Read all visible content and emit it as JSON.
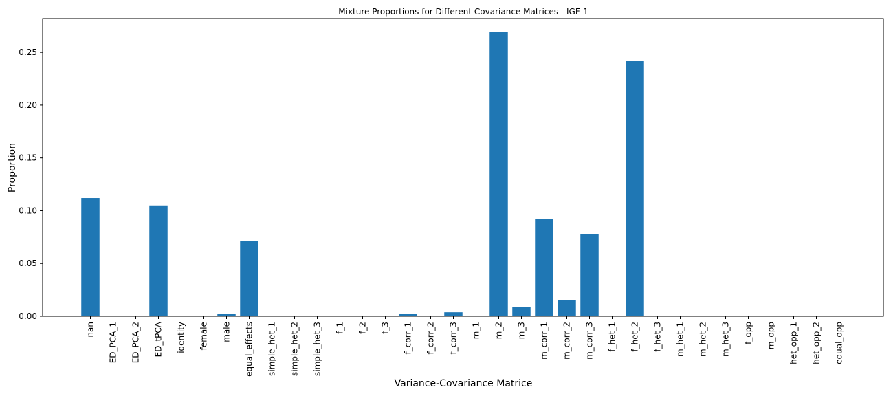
{
  "chart_data": {
    "type": "bar",
    "title": "Mixture Proportions for Different Covariance Matrices - IGF-1",
    "xlabel": "Variance-Covariance Matrice",
    "ylabel": "Proportion",
    "ylim": [
      0,
      0.282
    ],
    "yticks": [
      "0.00",
      "0.05",
      "0.10",
      "0.15",
      "0.20",
      "0.25"
    ],
    "grid": false,
    "color": "#1f77b4",
    "categories": [
      "nan",
      "ED_PCA_1",
      "ED_PCA_2",
      "ED_tPCA",
      "identity",
      "female",
      "male",
      "equal_effects",
      "simple_het_1",
      "simple_het_2",
      "simple_het_3",
      "f_1",
      "f_2",
      "f_3",
      "f_corr_1",
      "f_corr_2",
      "f_corr_3",
      "m_1",
      "m_2",
      "m_3",
      "m_corr_1",
      "m_corr_2",
      "m_corr_3",
      "f_het_1",
      "f_het_2",
      "f_het_3",
      "m_het_1",
      "m_het_2",
      "m_het_3",
      "f_opp",
      "m_opp",
      "het_opp_1",
      "het_opp_2",
      "equal_opp"
    ],
    "values": [
      0.112,
      0,
      0,
      0.105,
      0,
      0,
      0.0025,
      0.071,
      0,
      0,
      0,
      0,
      0,
      0,
      0.002,
      0.0006,
      0.0038,
      0,
      0.269,
      0.0085,
      0.092,
      0.0155,
      0.0775,
      0,
      0.242,
      0,
      0,
      0,
      0,
      0,
      0,
      0,
      0,
      0
    ]
  }
}
